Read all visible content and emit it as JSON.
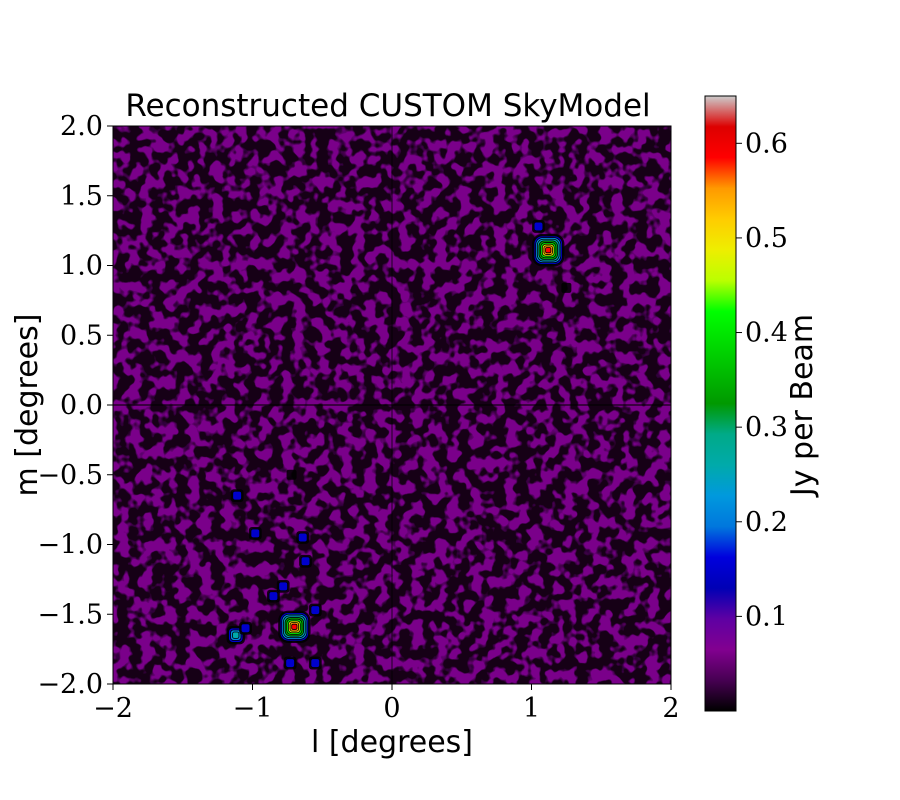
{
  "chart_data": {
    "type": "heatmap",
    "title": "Reconstructed CUSTOM SkyModel",
    "xlabel": "l [degrees]",
    "ylabel": "m [degrees]",
    "xlim": [
      -2,
      2
    ],
    "ylim": [
      -2,
      2
    ],
    "x_ticks": [
      -2,
      -1,
      0,
      1,
      2
    ],
    "y_ticks": [
      -2.0,
      -1.5,
      -1.0,
      -0.5,
      0.0,
      0.5,
      1.0,
      1.5,
      2.0
    ],
    "x_tick_labels": [
      "−2",
      "−1",
      "0",
      "1",
      "2"
    ],
    "y_tick_labels": [
      "−2.0",
      "−1.5",
      "−1.0",
      "−0.5",
      "0.0",
      "0.5",
      "1.0",
      "1.5",
      "2.0"
    ],
    "colorbar": {
      "label": "Jy per Beam",
      "colormap": "nipy_spectral",
      "range": [
        0.0,
        0.65
      ],
      "ticks": [
        0.1,
        0.2,
        0.3,
        0.4,
        0.5,
        0.6
      ],
      "tick_labels": [
        "0.1",
        "0.2",
        "0.3",
        "0.4",
        "0.5",
        "0.6"
      ]
    },
    "background_level": 0.045,
    "sources": [
      {
        "l": 1.12,
        "m": 1.11,
        "peak": 0.64
      },
      {
        "l": -0.7,
        "m": -1.59,
        "peak": 0.64
      },
      {
        "l": -1.12,
        "m": -1.65,
        "peak": 0.22
      },
      {
        "l": -1.11,
        "m": -0.65,
        "peak": 0.11
      },
      {
        "l": -0.98,
        "m": -0.92,
        "peak": 0.09
      },
      {
        "l": -0.78,
        "m": -1.3,
        "peak": 0.09
      },
      {
        "l": -0.62,
        "m": -1.12,
        "peak": 0.09
      },
      {
        "l": -0.64,
        "m": -0.95,
        "peak": 0.09
      },
      {
        "l": -0.55,
        "m": -1.47,
        "peak": 0.08
      },
      {
        "l": -0.55,
        "m": -1.85,
        "peak": 0.08
      },
      {
        "l": -0.73,
        "m": -1.85,
        "peak": 0.08
      },
      {
        "l": -0.72,
        "m": -0.5,
        "peak": 0.07
      },
      {
        "l": 1.05,
        "m": 1.28,
        "peak": 0.08
      },
      {
        "l": 1.25,
        "m": 0.84,
        "peak": 0.07
      },
      {
        "l": -0.85,
        "m": -1.37,
        "peak": 0.08
      },
      {
        "l": -1.05,
        "m": -1.6,
        "peak": 0.08
      }
    ],
    "grid": false
  }
}
